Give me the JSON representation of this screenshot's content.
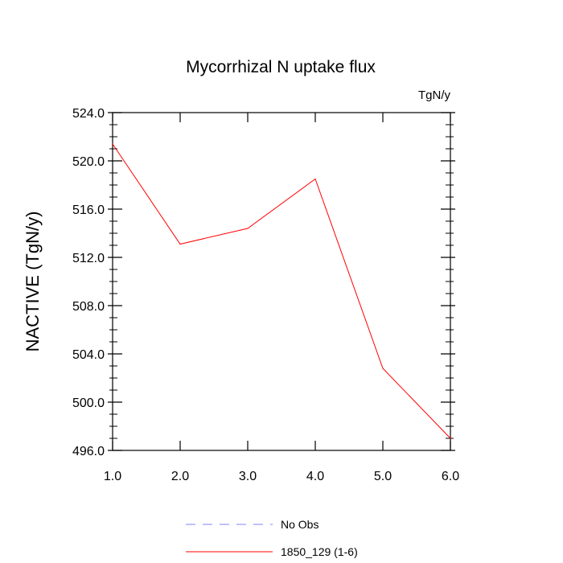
{
  "chart_data": {
    "type": "line",
    "title": "Mycorrhizal N uptake flux",
    "units": "TgN/y",
    "ylabel": "NACTIVE  (TgN/y)",
    "xlabel": "",
    "xlim": [
      1.0,
      6.0
    ],
    "ylim": [
      496.0,
      524.0
    ],
    "x_ticks": [
      "1.0",
      "2.0",
      "3.0",
      "4.0",
      "5.0",
      "6.0"
    ],
    "y_ticks": [
      "496.0",
      "500.0",
      "504.0",
      "508.0",
      "512.0",
      "516.0",
      "520.0",
      "524.0"
    ],
    "grid": false,
    "legend_position": "bottom",
    "legend": [
      {
        "label": "No Obs",
        "style": "dashed",
        "color": "#8080ff"
      },
      {
        "label": "1850_129 (1-6)",
        "style": "solid",
        "color": "#ff0000"
      }
    ],
    "series": [
      {
        "name": "1850_129 (1-6)",
        "color": "#ff0000",
        "x": [
          1,
          2,
          3,
          4,
          5,
          6
        ],
        "values": [
          521.4,
          513.1,
          514.4,
          518.5,
          502.8,
          497.0
        ]
      }
    ]
  }
}
